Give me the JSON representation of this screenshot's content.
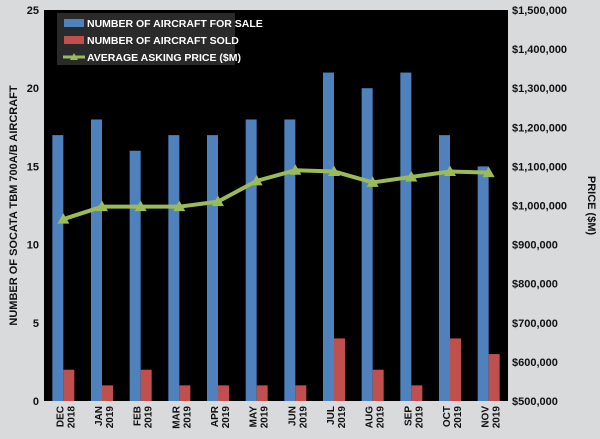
{
  "chart_data": {
    "type": "bar",
    "categories": [
      [
        "DEC",
        "2018"
      ],
      [
        "JAN",
        "2019"
      ],
      [
        "FEB",
        "2019"
      ],
      [
        "MAR",
        "2019"
      ],
      [
        "APR",
        "2019"
      ],
      [
        "MAY",
        "2019"
      ],
      [
        "JUN",
        "2019"
      ],
      [
        "JUL",
        "2019"
      ],
      [
        "AUG",
        "2019"
      ],
      [
        "SEP",
        "2019"
      ],
      [
        "OCT",
        "2019"
      ],
      [
        "NOV",
        "2019"
      ]
    ],
    "series": [
      {
        "name": "NUMBER OF AIRCRAFT FOR SALE",
        "type": "bar",
        "axis": "left",
        "color": "#4f81bd",
        "values": [
          17,
          18,
          16,
          17,
          17,
          18,
          18,
          21,
          20,
          21,
          17,
          15
        ]
      },
      {
        "name": "NUMBER OF AIRCRAFT SOLD",
        "type": "bar",
        "axis": "left",
        "color": "#c0504d",
        "values": [
          2,
          1,
          2,
          1,
          1,
          1,
          1,
          4,
          2,
          1,
          4,
          3
        ]
      },
      {
        "name": "AVERAGE ASKING PRICE ($M)",
        "type": "line",
        "axis": "right",
        "color": "#9bbb59",
        "marker": "triangle",
        "values": [
          965000,
          997000,
          997000,
          997000,
          1010000,
          1063000,
          1090000,
          1087000,
          1059000,
          1073000,
          1087000,
          1084000
        ]
      }
    ],
    "y_left": {
      "label": "NUMBER OF SOCATA TBM 700A/B AIRCRAFT",
      "ylim": [
        0,
        25
      ],
      "ticks": [
        "0",
        "5",
        "10",
        "15",
        "20",
        "25"
      ]
    },
    "y_right": {
      "label": "PRICE ($M)",
      "ylim": [
        500000,
        1500000
      ],
      "ticks": [
        "$500,000",
        "$600,000",
        "$700,000",
        "$800,000",
        "$900,000",
        "$1,000,000",
        "$1,100,000",
        "$1,200,000",
        "$1,300,000",
        "$1,400,000",
        "$1,500,000"
      ]
    },
    "legend": "top-left",
    "grid": false,
    "plot_background": "#000000",
    "page_background": "#d9dadb"
  }
}
